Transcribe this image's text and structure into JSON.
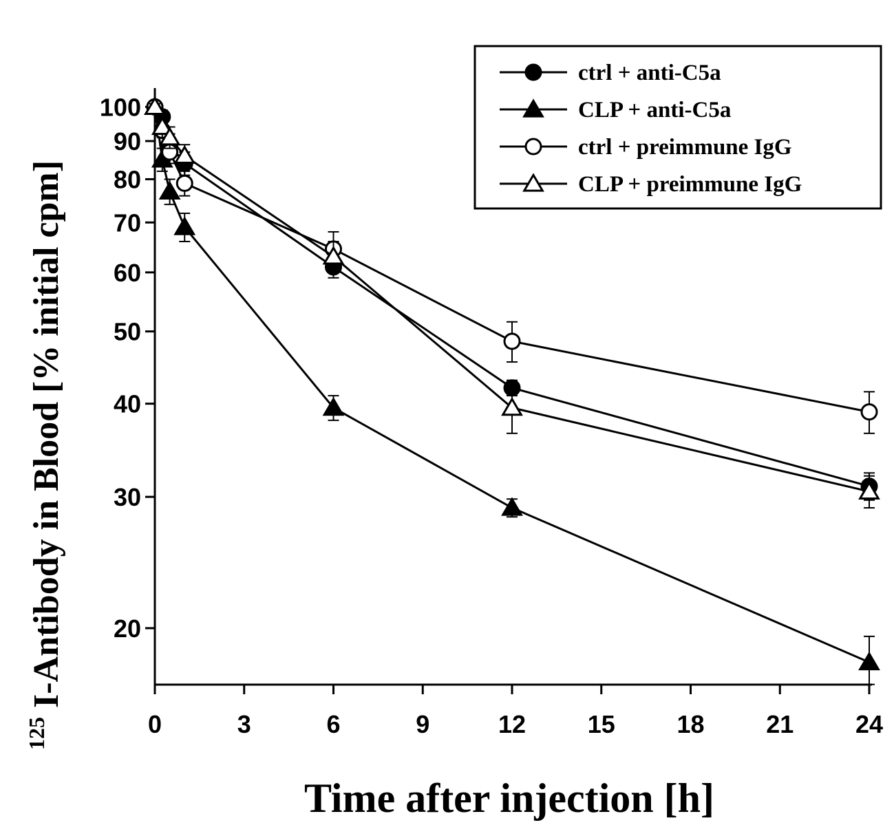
{
  "chart_data": {
    "type": "line",
    "xlabel": "Time after injection [h]",
    "ylabel_prefix": "125",
    "ylabel": "I-Antibody in Blood [% initial cpm]",
    "x_ticks": [
      0,
      3,
      6,
      9,
      12,
      15,
      18,
      21,
      24
    ],
    "y_ticks": [
      20,
      30,
      40,
      50,
      60,
      70,
      80,
      90,
      100
    ],
    "xlim": [
      0,
      24
    ],
    "ylim": [
      16.8,
      106
    ],
    "yscale": "log",
    "grid": false,
    "legend_position": "top-right",
    "series": [
      {
        "name": "ctrl + anti-C5a",
        "marker": "filled-circle",
        "x": [
          0,
          0.25,
          0.5,
          1,
          6,
          12,
          24
        ],
        "y": [
          100,
          97,
          89,
          84,
          61,
          42,
          31
        ],
        "err": [
          1,
          2,
          3,
          3,
          2,
          1,
          1.3
        ]
      },
      {
        "name": "CLP + anti-C5a",
        "marker": "filled-triangle",
        "x": [
          0,
          0.25,
          0.5,
          1,
          6,
          12,
          24
        ],
        "y": [
          100,
          85,
          77,
          69,
          39.5,
          29,
          18
        ],
        "err": [
          1,
          3,
          3,
          3,
          1.5,
          0.8,
          1.5
        ]
      },
      {
        "name": "ctrl + preimmune IgG",
        "marker": "open-circle",
        "x": [
          0,
          0.25,
          0.5,
          1,
          6,
          12,
          24
        ],
        "y": [
          100,
          93,
          87,
          79,
          64.5,
          48.5,
          39
        ],
        "err": [
          1,
          2,
          3,
          3,
          3.5,
          3,
          2.5
        ]
      },
      {
        "name": "CLP + preimmune IgG",
        "marker": "open-triangle",
        "x": [
          0,
          0.25,
          0.5,
          1,
          6,
          12,
          24
        ],
        "y": [
          100,
          94,
          91,
          86,
          63,
          39.5,
          30.5
        ],
        "err": [
          1,
          3,
          3,
          3,
          3,
          3,
          1.5
        ]
      }
    ]
  }
}
